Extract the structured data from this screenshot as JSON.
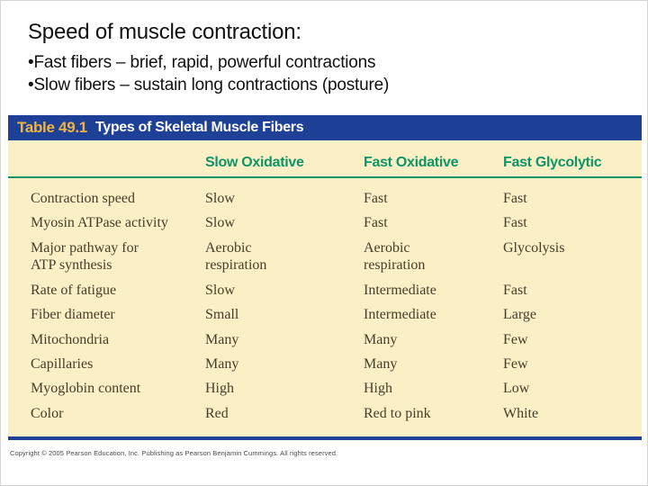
{
  "headline": {
    "title": "Speed of muscle contraction:",
    "bullets": [
      "•Fast fibers – brief, rapid, powerful contractions",
      "•Slow fibers – sustain long contractions (posture)"
    ]
  },
  "table": {
    "label": "Table 49.1",
    "title": "Types of Skeletal Muscle Fibers",
    "columns": [
      "Slow Oxidative",
      "Fast Oxidative",
      "Fast Glycolytic"
    ],
    "rows": [
      {
        "label": "Contraction speed",
        "values": [
          "Slow",
          "Fast",
          "Fast"
        ]
      },
      {
        "label": "Myosin ATPase activity",
        "values": [
          "Slow",
          "Fast",
          "Fast"
        ]
      },
      {
        "label": "Major pathway for\nATP synthesis",
        "values": [
          "Aerobic\nrespiration",
          "Aerobic\nrespiration",
          "Glycolysis"
        ]
      },
      {
        "label": "Rate of fatigue",
        "values": [
          "Slow",
          "Intermediate",
          "Fast"
        ]
      },
      {
        "label": "Fiber diameter",
        "values": [
          "Small",
          "Intermediate",
          "Large"
        ]
      },
      {
        "label": "Mitochondria",
        "values": [
          "Many",
          "Many",
          "Few"
        ]
      },
      {
        "label": "Capillaries",
        "values": [
          "Many",
          "Many",
          "Few"
        ]
      },
      {
        "label": "Myoglobin content",
        "values": [
          "High",
          "High",
          "Low"
        ]
      },
      {
        "label": "Color",
        "values": [
          "Red",
          "Red to pink",
          "White"
        ]
      }
    ]
  },
  "footer": {
    "copyright": "Copyright © 2005 Pearson Education, Inc. Publishing as Pearson Benjamin Cummings. All rights reserved."
  },
  "colors": {
    "banner_blue": "#1e4096",
    "table_number_gold": "#f0b441",
    "table_cream": "#fbefc6",
    "header_green": "#0e9466",
    "body_text": "#443e2a"
  }
}
